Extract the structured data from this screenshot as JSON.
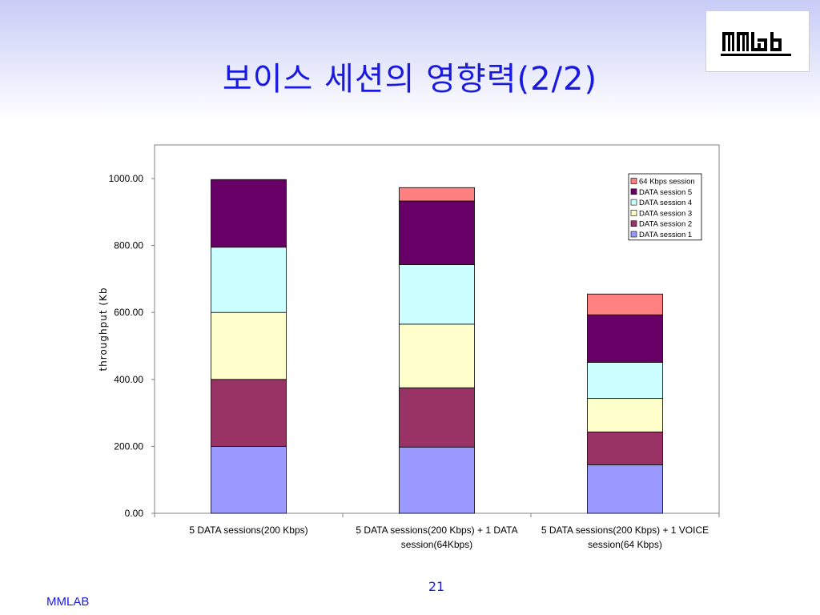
{
  "slide": {
    "title": "보이스 세션의 영향력(2/2)",
    "page_number": "21",
    "footer": "MMLAB",
    "logo_text": "MMLAB"
  },
  "colors": {
    "title": "#1a1adf",
    "series": {
      "DATA session 1": "#9999ff",
      "DATA session 2": "#993366",
      "DATA session 3": "#ffffcc",
      "DATA session 4": "#ccffff",
      "DATA session 5": "#660066",
      "64 Kbps session": "#ff8080"
    }
  },
  "chart_data": {
    "type": "bar",
    "stacked": true,
    "title": "",
    "xlabel": "",
    "ylabel": "throughput (Kb",
    "ylim": [
      0,
      1100
    ],
    "yticks": [
      "0.00",
      "200.00",
      "400.00",
      "600.00",
      "800.00",
      "1000.00"
    ],
    "categories": [
      [
        "5 DATA sessions(200 Kbps)"
      ],
      [
        "5 DATA sessions(200 Kbps) + 1 DATA",
        "session(64Kbps)"
      ],
      [
        "5 DATA sessions(200 Kbps) + 1 VOICE",
        "session(64 Kbps)"
      ]
    ],
    "series": [
      {
        "name": "DATA session 1",
        "values": [
          200,
          198,
          145
        ]
      },
      {
        "name": "DATA session 2",
        "values": [
          200,
          177,
          98
        ]
      },
      {
        "name": "DATA session 3",
        "values": [
          200,
          190,
          100
        ]
      },
      {
        "name": "DATA session 4",
        "values": [
          195,
          178,
          108
        ]
      },
      {
        "name": "DATA session 5",
        "values": [
          202,
          190,
          142
        ]
      },
      {
        "name": "64 Kbps session",
        "values": [
          0,
          40,
          62
        ]
      }
    ],
    "legend_order": [
      "64 Kbps session",
      "DATA session 5",
      "DATA session 4",
      "DATA session 3",
      "DATA session 2",
      "DATA session 1"
    ],
    "legend_position": "top-right",
    "grid": false
  }
}
